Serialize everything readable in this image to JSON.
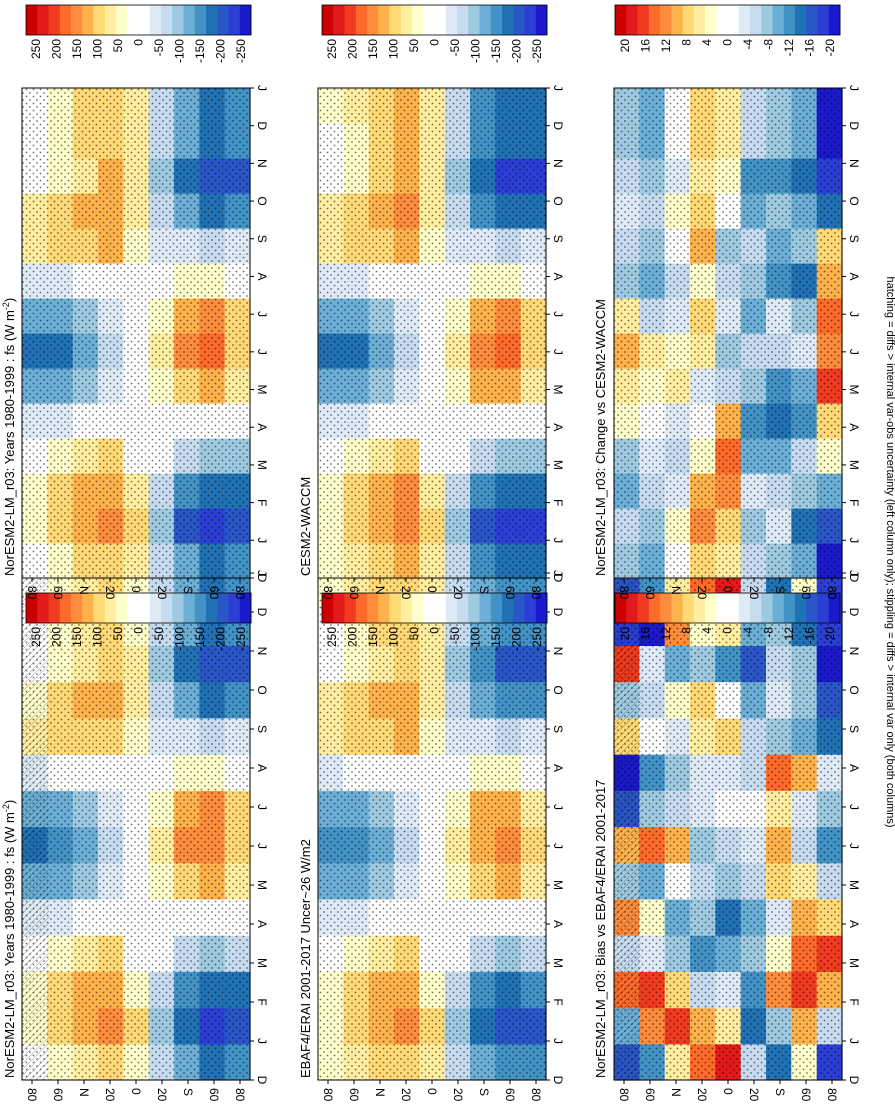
{
  "figure": {
    "footnote": "hatching = diffs > internal var-obs uncertainty (left column only); stippling = diffs > internal var only (both columns)"
  },
  "colors": {
    "abs": [
      "#cc0000",
      "#e31a1c",
      "#f03b20",
      "#fd6a2a",
      "#fd8d3c",
      "#feb24c",
      "#fed976",
      "#ffeda0",
      "#ffffcc",
      "#ffffff",
      "#ffffff",
      "#deebf7",
      "#c6dbef",
      "#9ecae1",
      "#6baed6",
      "#4292c6",
      "#2171b5",
      "#2a56c8",
      "#2b3fd6",
      "#1a1acc"
    ],
    "diff": [
      "#cc0000",
      "#e31a1c",
      "#f03b20",
      "#fd6a2a",
      "#fd8d3c",
      "#feb24c",
      "#fed976",
      "#ffeda0",
      "#ffffcc",
      "#ffffff",
      "#ffffff",
      "#deebf7",
      "#c6dbef",
      "#9ecae1",
      "#6baed6",
      "#4292c6",
      "#2171b5",
      "#2a56c8",
      "#2b3fd6",
      "#1a1acc"
    ]
  },
  "chart_data": [
    {
      "id": "p1",
      "type": "heatmap",
      "title": "NorESM2-LM_r03: Years 1980-1999 : fs (W m$^{-2}$)",
      "title_pre": "NorESM2-LM_r03: Years 1980-1999 : fs (W m",
      "title_sup": "-2",
      "title_post": ")",
      "x": [
        "D",
        "J",
        "F",
        "M",
        "A",
        "M",
        "J",
        "J",
        "A",
        "S",
        "O",
        "N",
        "D",
        "J"
      ],
      "y_ticks": [
        "80",
        "60",
        "N",
        "20",
        "0",
        "20",
        "S",
        "60",
        "80"
      ],
      "colorbar": {
        "labels": [
          "250",
          "200",
          "150",
          "100",
          "50",
          "0",
          "-50",
          "-100",
          "-150",
          "-200",
          "-250"
        ],
        "range": [
          -250,
          250
        ]
      },
      "hatching": true,
      "values": [
        [
          25,
          35,
          40,
          10,
          -40,
          -110,
          -150,
          -120,
          -40,
          70,
          50,
          20,
          20,
          25
        ],
        [
          45,
          80,
          85,
          35,
          -40,
          -105,
          -145,
          -110,
          -20,
          85,
          80,
          40,
          40,
          45
        ],
        [
          75,
          110,
          110,
          65,
          -20,
          -80,
          -110,
          -85,
          -10,
          90,
          105,
          70,
          75,
          75
        ],
        [
          95,
          130,
          120,
          85,
          10,
          -40,
          -65,
          -40,
          -5,
          100,
          120,
          100,
          95,
          95
        ],
        [
          50,
          80,
          50,
          20,
          10,
          -10,
          -20,
          -20,
          -10,
          30,
          60,
          70,
          50,
          50
        ],
        [
          -60,
          -90,
          -60,
          -20,
          10,
          40,
          60,
          40,
          5,
          -30,
          -60,
          -80,
          -60,
          -60
        ],
        [
          -120,
          -170,
          -130,
          -60,
          20,
          100,
          130,
          110,
          30,
          -40,
          -120,
          -150,
          -120,
          -120
        ],
        [
          -150,
          -200,
          -160,
          -80,
          20,
          110,
          150,
          130,
          30,
          -50,
          -150,
          -190,
          -150,
          -150
        ],
        [
          -140,
          -190,
          -150,
          -70,
          0,
          60,
          90,
          80,
          20,
          -40,
          -140,
          -190,
          -140,
          -140
        ]
      ]
    },
    {
      "id": "p2",
      "type": "heatmap",
      "title": "NorESM2-LM_r03: Years 1980-1999 : fs (W m$^{-2}$)",
      "title_pre": "NorESM2-LM_r03: Years 1980-1999 : fs (W m",
      "title_sup": "-2",
      "title_post": ")",
      "x": [
        "D",
        "J",
        "F",
        "M",
        "A",
        "M",
        "J",
        "J",
        "A",
        "S",
        "O",
        "N",
        "D",
        "J"
      ],
      "y_ticks": [
        "80",
        "60",
        "N",
        "20",
        "0",
        "20",
        "S",
        "60",
        "80"
      ],
      "colorbar": {
        "labels": [
          "250",
          "200",
          "150",
          "100",
          "50",
          "0",
          "-50",
          "-100",
          "-150",
          "-200",
          "-250"
        ],
        "range": [
          -250,
          250
        ]
      },
      "hatching": false,
      "values": [
        [
          25,
          40,
          45,
          15,
          -40,
          -110,
          -150,
          -120,
          -40,
          70,
          55,
          25,
          20,
          25
        ],
        [
          50,
          85,
          90,
          40,
          -40,
          -110,
          -150,
          -115,
          -25,
          90,
          85,
          45,
          45,
          50
        ],
        [
          80,
          115,
          115,
          70,
          -20,
          -85,
          -115,
          -90,
          -10,
          95,
          110,
          75,
          80,
          80
        ],
        [
          100,
          135,
          125,
          90,
          10,
          -40,
          -70,
          -45,
          -5,
          105,
          125,
          105,
          100,
          100
        ],
        [
          55,
          85,
          55,
          25,
          10,
          -10,
          -20,
          -20,
          -10,
          35,
          65,
          75,
          55,
          55
        ],
        [
          -60,
          -90,
          -60,
          -20,
          10,
          40,
          60,
          40,
          5,
          -30,
          -60,
          -80,
          -60,
          -60
        ],
        [
          -120,
          -175,
          -130,
          -60,
          20,
          100,
          135,
          110,
          30,
          -40,
          -120,
          -150,
          -120,
          -120
        ],
        [
          -155,
          -205,
          -165,
          -85,
          20,
          115,
          155,
          135,
          30,
          -50,
          -155,
          -195,
          -155,
          -155
        ],
        [
          -145,
          -195,
          -155,
          -75,
          0,
          60,
          95,
          85,
          20,
          -40,
          -145,
          -195,
          -145,
          -145
        ]
      ]
    },
    {
      "id": "p3",
      "type": "heatmap",
      "title": "EBAF4/ERAI 2001-2017 Uncer~26 W/m2",
      "title_pre": "EBAF4/ERAI 2001-2017 Uncer~26 W/m2",
      "title_sup": "",
      "title_post": "",
      "x": [
        "D",
        "J",
        "F",
        "M",
        "A",
        "M",
        "J",
        "J",
        "A",
        "S",
        "O",
        "N",
        "D",
        "J"
      ],
      "y_ticks": [
        "80",
        "60",
        "N",
        "20",
        "0",
        "20",
        "S",
        "60",
        "80"
      ],
      "colorbar": {
        "labels": [
          "250",
          "200",
          "150",
          "100",
          "50",
          "0",
          "-50",
          "-100",
          "-150",
          "-200",
          "-250"
        ],
        "range": [
          -250,
          250
        ]
      },
      "hatching": false,
      "values": [
        [
          30,
          40,
          45,
          15,
          -35,
          -105,
          -145,
          -115,
          -35,
          75,
          55,
          25,
          25,
          30
        ],
        [
          55,
          90,
          90,
          40,
          -35,
          -100,
          -140,
          -105,
          -20,
          90,
          85,
          45,
          50,
          55
        ],
        [
          80,
          115,
          115,
          70,
          -20,
          -80,
          -105,
          -80,
          -10,
          95,
          110,
          75,
          80,
          80
        ],
        [
          100,
          135,
          125,
          90,
          10,
          -40,
          -65,
          -40,
          -5,
          105,
          120,
          100,
          100,
          100
        ],
        [
          55,
          80,
          50,
          25,
          10,
          -10,
          -20,
          -20,
          -10,
          35,
          60,
          70,
          55,
          55
        ],
        [
          -55,
          -85,
          -55,
          -20,
          10,
          40,
          55,
          40,
          5,
          -30,
          -55,
          -75,
          -55,
          -55
        ],
        [
          -115,
          -165,
          -125,
          -55,
          20,
          95,
          125,
          105,
          30,
          -40,
          -115,
          -145,
          -115,
          -115
        ],
        [
          -145,
          -195,
          -155,
          -75,
          20,
          105,
          145,
          125,
          30,
          -50,
          -145,
          -185,
          -145,
          -145
        ],
        [
          -135,
          -185,
          -145,
          -65,
          0,
          55,
          85,
          75,
          20,
          -40,
          -135,
          -185,
          -135,
          -135
        ]
      ]
    },
    {
      "id": "p4",
      "type": "heatmap",
      "title": "CESM2-WACCM",
      "title_pre": "CESM2-WACCM",
      "title_sup": "",
      "title_post": "",
      "x": [
        "D",
        "J",
        "F",
        "M",
        "A",
        "M",
        "J",
        "J",
        "A",
        "S",
        "O",
        "N",
        "D",
        "J"
      ],
      "y_ticks": [
        "80",
        "60",
        "N",
        "20",
        "0",
        "20",
        "S",
        "60",
        "80"
      ],
      "colorbar": {
        "labels": [
          "250",
          "200",
          "150",
          "100",
          "50",
          "0",
          "-50",
          "-100",
          "-150",
          "-200",
          "-250"
        ],
        "range": [
          -250,
          250
        ]
      },
      "hatching": false,
      "values": [
        [
          30,
          45,
          50,
          15,
          -40,
          -110,
          -150,
          -120,
          -40,
          75,
          55,
          25,
          25,
          30
        ],
        [
          55,
          90,
          95,
          45,
          -40,
          -110,
          -150,
          -115,
          -25,
          95,
          85,
          45,
          50,
          55
        ],
        [
          85,
          120,
          120,
          75,
          -20,
          -85,
          -115,
          -90,
          -10,
          100,
          115,
          80,
          85,
          85
        ],
        [
          105,
          140,
          130,
          95,
          10,
          -40,
          -70,
          -45,
          -5,
          110,
          130,
          110,
          105,
          105
        ],
        [
          60,
          85,
          55,
          25,
          10,
          -10,
          -20,
          -20,
          -10,
          35,
          65,
          75,
          60,
          60
        ],
        [
          -60,
          -90,
          -60,
          -20,
          10,
          40,
          60,
          40,
          5,
          -30,
          -60,
          -80,
          -60,
          -60
        ],
        [
          -125,
          -180,
          -135,
          -60,
          20,
          105,
          140,
          115,
          30,
          -40,
          -125,
          -155,
          -125,
          -125
        ],
        [
          -160,
          -210,
          -170,
          -85,
          20,
          120,
          160,
          140,
          30,
          -50,
          -160,
          -200,
          -160,
          -160
        ],
        [
          -150,
          -200,
          -160,
          -80,
          0,
          65,
          100,
          90,
          20,
          -40,
          -150,
          -200,
          -150,
          -150
        ]
      ]
    },
    {
      "id": "p5",
      "type": "heatmap",
      "title": "NorESM2-LM_r03: Bias vs EBAF4/ERAI 2001-2017",
      "title_pre": "NorESM2-LM_r03: Bias vs EBAF4/ERAI 2001-2017",
      "title_sup": "",
      "title_post": "",
      "x": [
        "D",
        "J",
        "F",
        "M",
        "A",
        "M",
        "J",
        "J",
        "A",
        "S",
        "O",
        "N",
        "D",
        "J"
      ],
      "y_ticks": [
        "80",
        "60",
        "N",
        "20",
        "0",
        "20",
        "S",
        "60",
        "80"
      ],
      "colorbar": {
        "labels": [
          "20",
          "16",
          "12",
          "8",
          "4",
          "0",
          "-4",
          "-8",
          "-12",
          "-16",
          "-20"
        ],
        "range": [
          -20,
          20
        ]
      },
      "hatching": true,
      "values": [
        [
          -15,
          -8,
          14,
          -4,
          12,
          -6,
          10,
          -14,
          -18,
          8,
          -6,
          16,
          -16,
          -15
        ],
        [
          -10,
          12,
          16,
          -2,
          4,
          -8,
          14,
          -6,
          -10,
          2,
          -4,
          -2,
          -18,
          -10
        ],
        [
          6,
          16,
          8,
          -6,
          -8,
          2,
          10,
          -4,
          -6,
          -2,
          4,
          -8,
          12,
          6
        ],
        [
          14,
          10,
          -4,
          -10,
          -6,
          -4,
          -6,
          -2,
          -2,
          6,
          8,
          -6,
          4,
          14
        ],
        [
          18,
          6,
          -2,
          -8,
          -12,
          -6,
          -4,
          0,
          -2,
          8,
          2,
          -10,
          6,
          18
        ],
        [
          -4,
          -12,
          -10,
          -6,
          -8,
          -4,
          -2,
          2,
          -4,
          -4,
          -8,
          -14,
          -8,
          -4
        ],
        [
          -12,
          -6,
          12,
          4,
          -2,
          8,
          10,
          6,
          14,
          -6,
          -2,
          -4,
          -6,
          -12
        ],
        [
          4,
          10,
          16,
          14,
          10,
          6,
          -4,
          -2,
          10,
          -8,
          -6,
          -6,
          -12,
          4
        ],
        [
          -16,
          -4,
          10,
          16,
          8,
          -4,
          -10,
          -6,
          -2,
          -12,
          -14,
          -18,
          -16,
          -16
        ]
      ]
    },
    {
      "id": "p6",
      "type": "heatmap",
      "title": "NorESM2-LM_r03: Change vs CESM2-WACCM",
      "title_pre": "NorESM2-LM_r03: Change vs CESM2-WACCM",
      "title_sup": "",
      "title_post": "",
      "x": [
        "D",
        "J",
        "F",
        "M",
        "A",
        "M",
        "J",
        "J",
        "A",
        "S",
        "O",
        "N",
        "D",
        "J"
      ],
      "y_ticks": [
        "80",
        "60",
        "N",
        "20",
        "0",
        "20",
        "S",
        "60",
        "80"
      ],
      "colorbar": {
        "labels": [
          "20",
          "16",
          "12",
          "8",
          "4",
          "0",
          "-4",
          "-8",
          "-12",
          "-16",
          "-20"
        ],
        "range": [
          -20,
          20
        ]
      },
      "hatching": false,
      "values": [
        [
          -6,
          -4,
          -8,
          -6,
          4,
          6,
          10,
          6,
          -6,
          -4,
          -2,
          -4,
          -6,
          -6
        ],
        [
          -8,
          -6,
          -4,
          -2,
          2,
          4,
          6,
          -4,
          -8,
          -6,
          -4,
          -6,
          -8,
          -8
        ],
        [
          2,
          4,
          -2,
          -4,
          -2,
          6,
          4,
          -2,
          -4,
          2,
          4,
          -2,
          2,
          2
        ],
        [
          8,
          12,
          10,
          4,
          2,
          -2,
          6,
          8,
          4,
          10,
          8,
          6,
          8,
          8
        ],
        [
          6,
          8,
          12,
          14,
          10,
          -4,
          -6,
          -2,
          -4,
          -6,
          2,
          4,
          6,
          6
        ],
        [
          -4,
          -6,
          -2,
          -8,
          -10,
          -6,
          -4,
          -8,
          -6,
          -4,
          -8,
          -10,
          -4,
          -4
        ],
        [
          -6,
          -2,
          -4,
          -8,
          -12,
          -10,
          -4,
          -2,
          -10,
          -8,
          -6,
          -10,
          -6,
          -6
        ],
        [
          -8,
          -12,
          -6,
          -4,
          -10,
          -8,
          -2,
          -6,
          -12,
          -6,
          -8,
          -12,
          -8,
          -8
        ],
        [
          -18,
          -14,
          -8,
          4,
          8,
          16,
          12,
          14,
          10,
          8,
          -12,
          -16,
          -18,
          -18
        ]
      ]
    }
  ]
}
